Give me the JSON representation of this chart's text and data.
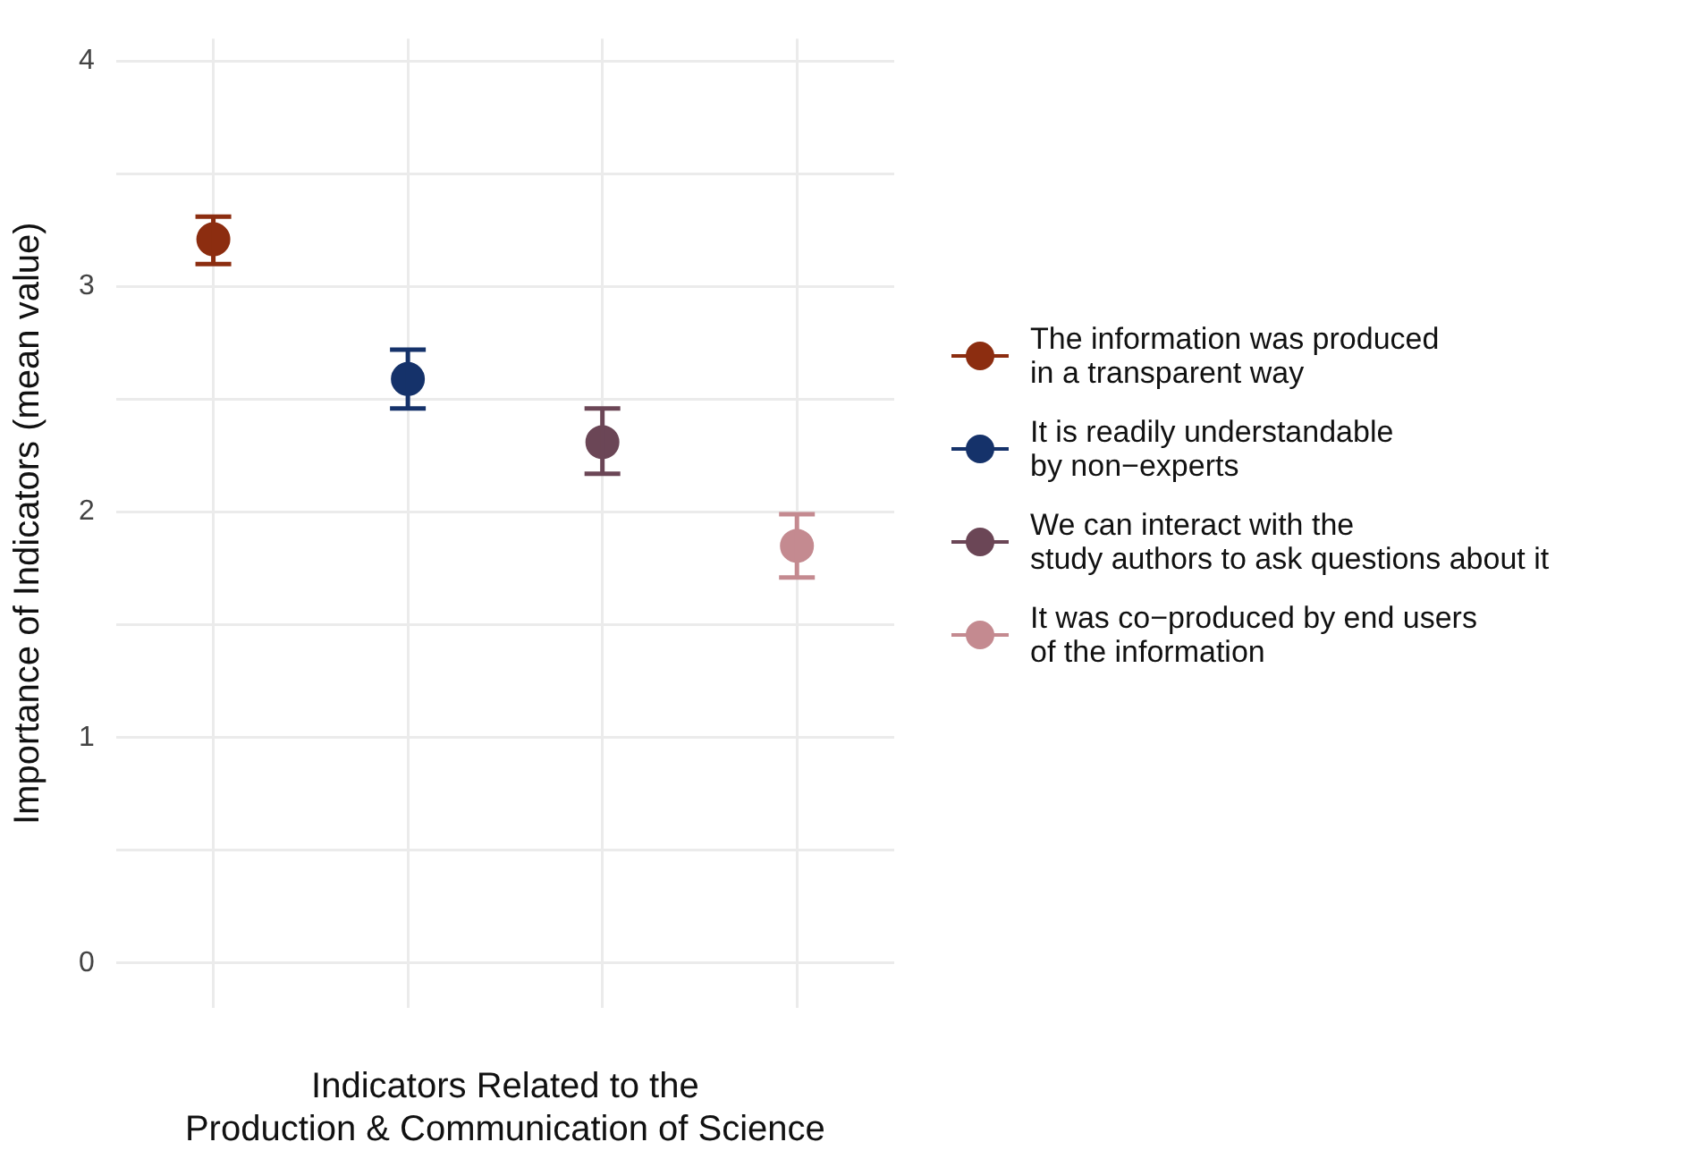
{
  "chart_data": {
    "type": "scatter",
    "xlabel": "Indicators Related to the\nProduction & Communication of Science",
    "ylabel": "Importance of Indicators (mean value)",
    "categories": [
      null,
      null,
      null,
      null
    ],
    "series": [
      {
        "name": "The information was produced\nin a transparent way",
        "color": "#8c2d10",
        "values": [
          3.21,
          null,
          null,
          null
        ],
        "errors": [
          [
            3.1,
            3.31
          ],
          null,
          null,
          null
        ]
      },
      {
        "name": "It is readily understandable\nby non−experts",
        "color": "#15326a",
        "values": [
          null,
          2.59,
          null,
          null
        ],
        "errors": [
          null,
          [
            2.46,
            2.72
          ],
          null,
          null
        ]
      },
      {
        "name": "We can interact with the\nstudy authors to ask questions about it",
        "color": "#6b4656",
        "values": [
          null,
          null,
          2.31,
          null
        ],
        "errors": [
          null,
          null,
          [
            2.17,
            2.46
          ],
          null
        ]
      },
      {
        "name": "It was co−produced by end users\nof the information",
        "color": "#c48a90",
        "values": [
          null,
          null,
          null,
          1.85
        ],
        "errors": [
          null,
          null,
          null,
          [
            1.71,
            1.99
          ]
        ]
      }
    ],
    "ylim": [
      -0.2,
      4.1
    ],
    "yticks": [
      0,
      {
        "value": 0.5,
        "label": null
      },
      1,
      {
        "value": 1.5,
        "label": null
      },
      2,
      {
        "value": 2.5,
        "label": null
      },
      3,
      {
        "value": 3.5,
        "label": null
      },
      4
    ],
    "grid": true,
    "legend": "right",
    "marker": "circle"
  }
}
